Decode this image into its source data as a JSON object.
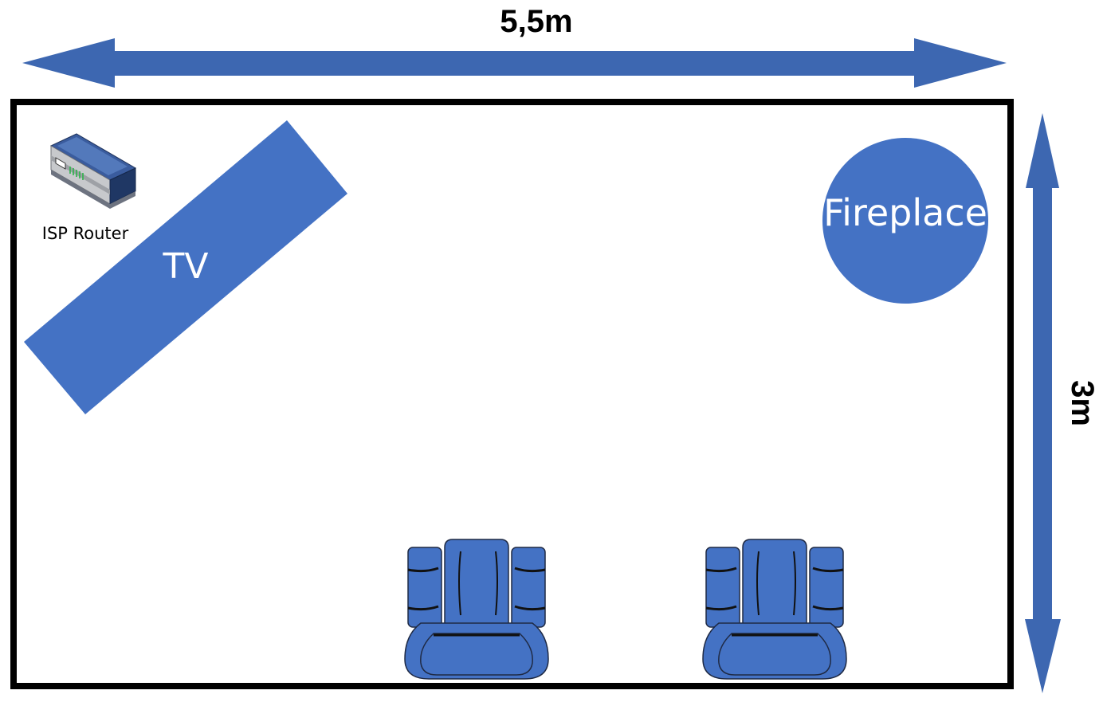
{
  "dimensions": {
    "width_label": "5,5m",
    "height_label": "3m"
  },
  "furniture": {
    "tv_label": "TV",
    "fireplace_label": "Fireplace",
    "router_label": "ISP Router",
    "armchair_count": 2
  },
  "colors": {
    "furniture_blue": "#4472c4",
    "arrow_blue": "#3d67b1",
    "wall": "#000000",
    "outline": "#1f2a44"
  }
}
